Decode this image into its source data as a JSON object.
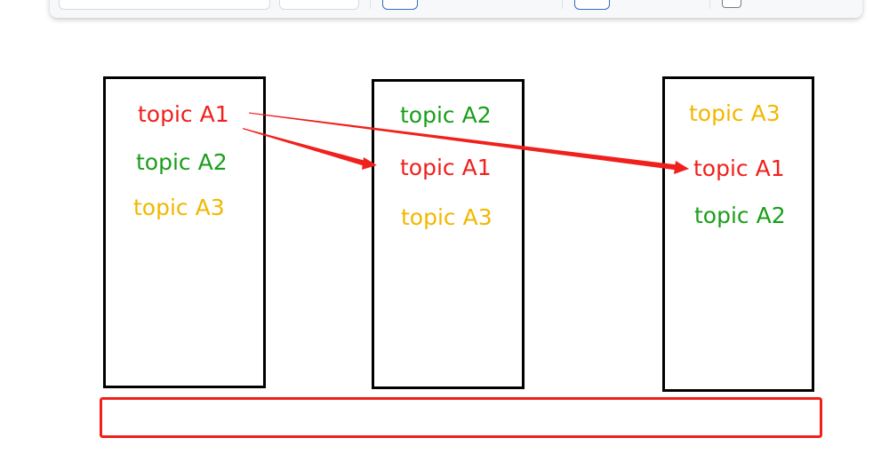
{
  "colors": {
    "red": "#f0201c",
    "green": "#1a9e1a",
    "yellow": "#f2b700",
    "box_border": "#000000",
    "bar_border": "#f0201c"
  },
  "columns": [
    {
      "topics": [
        {
          "text": "topic A1",
          "color": "red"
        },
        {
          "text": "topic A2",
          "color": "green"
        },
        {
          "text": "topic A3",
          "color": "yellow"
        }
      ]
    },
    {
      "topics": [
        {
          "text": "topic A2",
          "color": "green"
        },
        {
          "text": "topic A1",
          "color": "red"
        },
        {
          "text": "topic A3",
          "color": "yellow"
        }
      ]
    },
    {
      "topics": [
        {
          "text": "topic A3",
          "color": "yellow"
        },
        {
          "text": "topic A1",
          "color": "red"
        },
        {
          "text": "topic A2",
          "color": "green"
        }
      ]
    }
  ]
}
